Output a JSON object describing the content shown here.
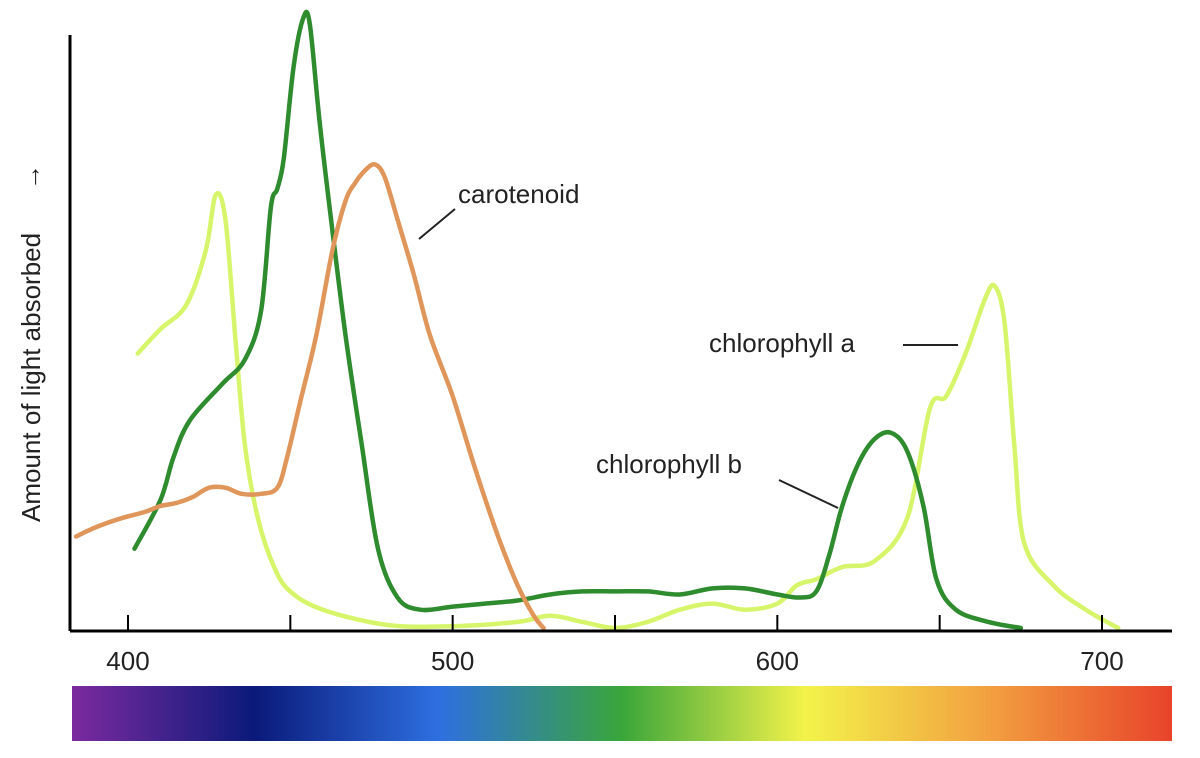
{
  "chart_data": {
    "type": "line",
    "title": "",
    "xlabel": "",
    "ylabel": "Amount of light absorbed",
    "ylabel_arrow": "→",
    "x_ticks": [
      400,
      500,
      600,
      700
    ],
    "x_tick_labels": [
      "400",
      "500",
      "600",
      "700"
    ],
    "xlim": [
      382,
      722
    ],
    "ylim": [
      0,
      100
    ],
    "grid": false,
    "spectrum_bar": [
      "#7b2a9e",
      "#0a1a7a",
      "#2e6fe0",
      "#3aa63a",
      "#f3f34a",
      "#f2a040",
      "#e8432a"
    ],
    "series": [
      {
        "name": "chlorophyll a",
        "color": "#d7f56a",
        "points": [
          [
            403,
            45
          ],
          [
            410,
            49
          ],
          [
            418,
            53
          ],
          [
            424,
            62
          ],
          [
            427,
            71
          ],
          [
            430,
            67
          ],
          [
            433,
            48
          ],
          [
            436,
            30
          ],
          [
            440,
            18
          ],
          [
            445,
            10
          ],
          [
            450,
            6
          ],
          [
            460,
            3
          ],
          [
            480,
            0.5
          ],
          [
            500,
            0.3
          ],
          [
            520,
            1
          ],
          [
            530,
            2
          ],
          [
            540,
            1
          ],
          [
            550,
            0
          ],
          [
            560,
            1
          ],
          [
            570,
            3
          ],
          [
            580,
            4
          ],
          [
            590,
            3
          ],
          [
            600,
            4
          ],
          [
            606,
            7
          ],
          [
            612,
            8
          ],
          [
            620,
            10
          ],
          [
            630,
            11
          ],
          [
            640,
            18
          ],
          [
            647,
            36
          ],
          [
            652,
            38
          ],
          [
            658,
            45
          ],
          [
            664,
            54
          ],
          [
            667,
            56
          ],
          [
            670,
            50
          ],
          [
            673,
            30
          ],
          [
            676,
            14
          ],
          [
            685,
            7
          ],
          [
            695,
            3
          ],
          [
            705,
            0
          ]
        ]
      },
      {
        "name": "chlorophyll b",
        "color": "#2e8b2e",
        "points": [
          [
            402,
            13
          ],
          [
            410,
            21
          ],
          [
            414,
            28
          ],
          [
            419,
            34
          ],
          [
            429,
            40
          ],
          [
            436,
            44
          ],
          [
            441,
            52
          ],
          [
            444,
            69
          ],
          [
            446,
            72
          ],
          [
            448,
            77
          ],
          [
            451,
            92
          ],
          [
            454,
            100
          ],
          [
            456,
            99
          ],
          [
            459,
            83
          ],
          [
            463,
            65
          ],
          [
            467,
            48
          ],
          [
            472,
            30
          ],
          [
            477,
            13
          ],
          [
            483,
            5
          ],
          [
            490,
            3
          ],
          [
            500,
            3.5
          ],
          [
            510,
            4
          ],
          [
            520,
            4.5
          ],
          [
            530,
            5.5
          ],
          [
            540,
            6
          ],
          [
            550,
            6
          ],
          [
            560,
            6
          ],
          [
            570,
            5.5
          ],
          [
            580,
            6.5
          ],
          [
            590,
            6.5
          ],
          [
            600,
            5.5
          ],
          [
            607,
            5
          ],
          [
            612,
            6
          ],
          [
            616,
            12
          ],
          [
            620,
            20
          ],
          [
            625,
            27
          ],
          [
            630,
            31
          ],
          [
            635,
            32
          ],
          [
            640,
            29
          ],
          [
            645,
            20
          ],
          [
            649,
            8
          ],
          [
            655,
            3
          ],
          [
            665,
            1
          ],
          [
            675,
            0
          ]
        ]
      },
      {
        "name": "carotenoid",
        "color": "#e0965a",
        "points": [
          [
            384,
            15
          ],
          [
            390,
            16.5
          ],
          [
            398,
            18
          ],
          [
            405,
            19
          ],
          [
            410,
            20
          ],
          [
            415,
            20.5
          ],
          [
            420,
            21.5
          ],
          [
            425,
            23
          ],
          [
            430,
            23
          ],
          [
            435,
            22
          ],
          [
            441,
            22
          ],
          [
            446,
            23
          ],
          [
            449,
            28
          ],
          [
            453,
            37
          ],
          [
            458,
            48
          ],
          [
            463,
            62
          ],
          [
            467,
            70
          ],
          [
            470,
            73
          ],
          [
            473,
            75
          ],
          [
            476,
            76
          ],
          [
            479,
            74
          ],
          [
            483,
            67
          ],
          [
            488,
            58
          ],
          [
            493,
            48
          ],
          [
            500,
            38
          ],
          [
            507,
            26
          ],
          [
            514,
            15
          ],
          [
            520,
            7
          ],
          [
            525,
            2
          ],
          [
            528,
            0
          ]
        ]
      }
    ],
    "annotations": [
      {
        "text": "carotenoid",
        "series": "carotenoid"
      },
      {
        "text": "chlorophyll a",
        "series": "chlorophyll a"
      },
      {
        "text": "chlorophyll b",
        "series": "chlorophyll b"
      }
    ]
  }
}
